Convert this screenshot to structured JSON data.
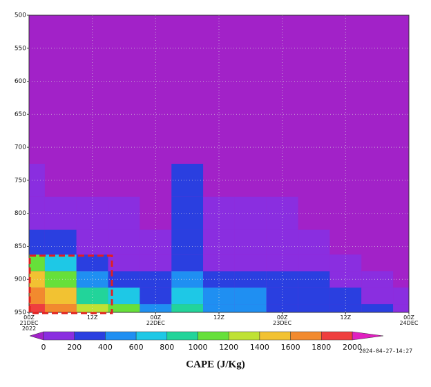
{
  "chart_data": {
    "type": "contour",
    "title": "CAPE (J/Kg)",
    "timestamp": "2024-04-27-14:27",
    "x": [
      0,
      6,
      12,
      18,
      24,
      30,
      36,
      42,
      48,
      54,
      60,
      66,
      72
    ],
    "y": [
      950,
      925,
      900,
      875,
      850,
      800,
      750
    ],
    "values": [
      [
        1800,
        1600,
        1200,
        1000,
        400,
        800,
        500,
        400,
        300,
        300,
        200,
        200,
        100
      ],
      [
        1600,
        1400,
        900,
        700,
        300,
        600,
        400,
        400,
        300,
        200,
        200,
        100,
        100
      ],
      [
        1400,
        1000,
        500,
        300,
        200,
        500,
        300,
        200,
        200,
        200,
        100,
        100,
        null
      ],
      [
        1000,
        600,
        200,
        100,
        100,
        300,
        100,
        100,
        100,
        100,
        100,
        null,
        null
      ],
      [
        300,
        200,
        100,
        100,
        100,
        300,
        100,
        100,
        100,
        100,
        null,
        null,
        null
      ],
      [
        100,
        100,
        100,
        100,
        null,
        200,
        100,
        100,
        100,
        null,
        null,
        null,
        null
      ],
      [
        100,
        null,
        null,
        null,
        null,
        200,
        null,
        null,
        null,
        null,
        null,
        null,
        null
      ]
    ],
    "xlim": [
      0,
      72
    ],
    "xticks": [
      {
        "value": 0,
        "label": "00Z\n21DEC\n2022"
      },
      {
        "value": 12,
        "label": "12Z"
      },
      {
        "value": 24,
        "label": "00Z\n22DEC"
      },
      {
        "value": 36,
        "label": "12Z"
      },
      {
        "value": 48,
        "label": "00Z\n23DEC"
      },
      {
        "value": 60,
        "label": "12Z"
      },
      {
        "value": 72,
        "label": "00Z\n24DEC"
      }
    ],
    "ylim": [
      950,
      500
    ],
    "yticks": [
      500,
      550,
      600,
      650,
      700,
      750,
      800,
      850,
      900,
      950
    ],
    "grid": true,
    "levels": [
      0,
      200,
      400,
      600,
      800,
      1000,
      1200,
      1400,
      1600,
      1800,
      2000
    ],
    "colors": [
      "#8a2ee0",
      "#2a3fe0",
      "#1f8ff2",
      "#1ec8e6",
      "#22d49a",
      "#66e03a",
      "#bfe234",
      "#f2c232",
      "#f28a2e",
      "#ef3e3e"
    ],
    "under_color": "#a222c8",
    "over_color": "#e020c0"
  }
}
